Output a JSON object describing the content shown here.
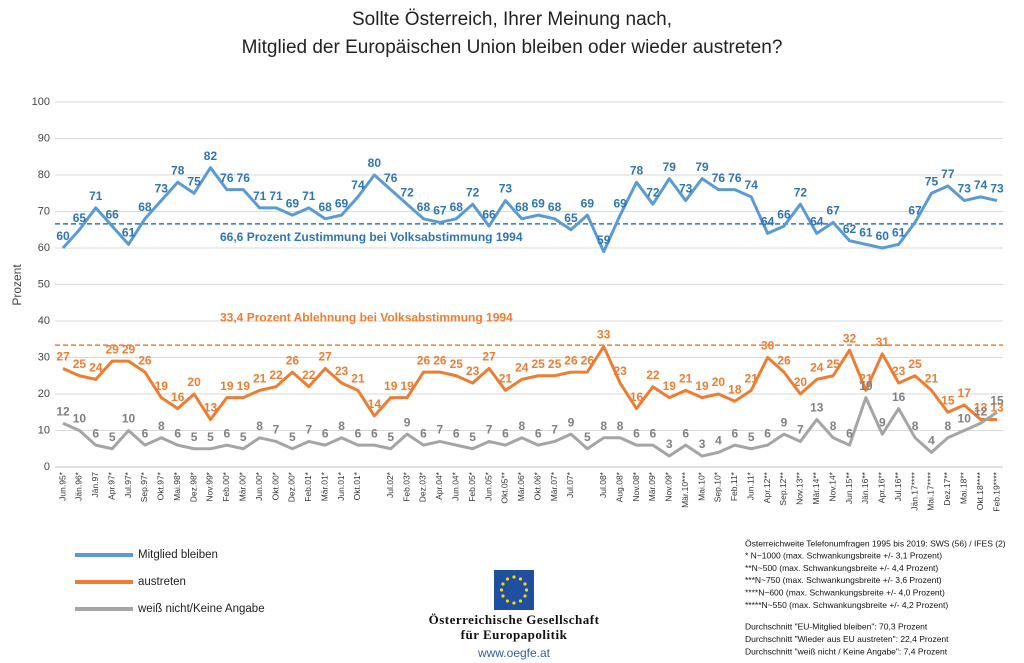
{
  "chart_data": {
    "type": "line",
    "title": [
      "Sollte Österreich, Ihrer Meinung nach,",
      "Mitglied der Europäischen Union bleiben oder wieder austreten?"
    ],
    "ylabel": "Prozent",
    "categories": [
      "Jun.95*",
      "Jän.96*",
      "Jän.97",
      "Apr.97*",
      "Jul.97*",
      "Sep.97*",
      "Okt.97*",
      "Mai.98*",
      "Dez.98*",
      "Nov.99*",
      "Feb.00*",
      "Mär.00*",
      "Jun.00*",
      "Okt.00*",
      "Dez.00*",
      "Feb.01*",
      "Mär.01*",
      "Jun.01*",
      "Okt.01*",
      null,
      "Jul.02*",
      "Feb.03*",
      "Dez.03*",
      "Apr.04*",
      "Jun.04*",
      "Feb.05*",
      "Jun.05*",
      "Okt.05**",
      "Mär.06*",
      "Okt.06*",
      "Mär.07*",
      "Jul.07*",
      null,
      "Jul.08*",
      "Aug.08*",
      "Nov.08*",
      "Mär.09*",
      "Nov.09*",
      "Mär.10***",
      "Mai.10*",
      "Sep.10*",
      "Feb.11*",
      "Jun.11*",
      "Apr.12**",
      "Sep.12**",
      "Nov.13**",
      "Mär.14**",
      "Nov.14*",
      "Jun.15**",
      "Jän.16**",
      "Apr.16**",
      "Jul.16**",
      "Jän.17****",
      "Mai.17****",
      "Dez.17**",
      "Mai.18**",
      "Okt.18****",
      "Feb.19****"
    ],
    "series": [
      {
        "name": "Mitglied bleiben",
        "color": "#5b9bd5",
        "label_color": "#2e75b6",
        "values": [
          60,
          65,
          71,
          66,
          61,
          68,
          73,
          78,
          75,
          82,
          76,
          76,
          71,
          71,
          69,
          71,
          68,
          69,
          74,
          80,
          76,
          72,
          68,
          67,
          68,
          72,
          66,
          73,
          68,
          69,
          68,
          65,
          69,
          59,
          69,
          78,
          72,
          79,
          73,
          79,
          76,
          76,
          74,
          64,
          66,
          72,
          64,
          67,
          62,
          61,
          60,
          61,
          67,
          75,
          77,
          73,
          74,
          73
        ]
      },
      {
        "name": "austreten",
        "color": "#ed7d31",
        "label_color": "#ed7d31",
        "values": [
          27,
          25,
          24,
          29,
          29,
          26,
          19,
          16,
          20,
          13,
          19,
          19,
          21,
          22,
          26,
          22,
          27,
          23,
          21,
          14,
          19,
          19,
          26,
          26,
          25,
          23,
          27,
          21,
          24,
          25,
          25,
          26,
          26,
          33,
          23,
          16,
          22,
          19,
          21,
          19,
          20,
          18,
          21,
          30,
          26,
          20,
          24,
          25,
          32,
          21,
          31,
          23,
          25,
          21,
          15,
          17,
          13,
          13
        ]
      },
      {
        "name": "weiß nicht/Keine Angabe",
        "color": "#a5a5a5",
        "label_color": "#808080",
        "values": [
          12,
          10,
          6,
          5,
          10,
          6,
          8,
          6,
          5,
          5,
          6,
          5,
          8,
          7,
          5,
          7,
          6,
          8,
          6,
          6,
          5,
          9,
          6,
          7,
          6,
          5,
          7,
          6,
          8,
          6,
          7,
          9,
          5,
          8,
          8,
          6,
          6,
          3,
          6,
          3,
          4,
          6,
          5,
          6,
          9,
          7,
          13,
          8,
          6,
          19,
          9,
          16,
          8,
          4,
          8,
          10,
          12,
          15
        ]
      }
    ],
    "ylim": [
      0,
      100
    ],
    "yticks": [
      0,
      10,
      20,
      30,
      40,
      50,
      60,
      70,
      80,
      90,
      100
    ],
    "grid": true,
    "reference_lines": [
      {
        "value": 66.6,
        "label": "66,6 Prozent Zustimmung bei Volksabstimmung 1994",
        "color": "#2e75b6"
      },
      {
        "value": 33.4,
        "label": "33,4 Prozent Ablehnung bei Volksabstimmung 1994",
        "color": "#ed7d31"
      }
    ],
    "legend": "bottom-left"
  },
  "footer": {
    "organization": [
      "Österreichische Gesellschaft",
      "für Europapolitik"
    ],
    "url": "www.oegfe.at"
  },
  "notes": {
    "sample": [
      "Österreichweite Telefonumfragen 1995 bis 2019: SWS (56) / IFES (2)",
      "* N~1000 (max. Schwankungsbreite +/- 3,1 Prozent)",
      "**N~500 (max. Schwankungsbreite +/-  4,4 Prozent)",
      "***N~750 (max. Schwankungsbreite +/- 3,6 Prozent)",
      "****N~600 (max. Schwankungsbreite +/- 4,0 Prozent)",
      "*****N~550 (max. Schwankungsbreite +/- 4,2 Prozent)"
    ],
    "averages": [
      "Durchschnitt \"EU-Mitglied bleiben\": 70,3 Prozent",
      "Durchschnitt \"Wieder aus EU austreten\":  22,4 Prozent",
      "Durchschnitt \"weiß nicht / Keine Angabe\": 7,4 Prozent"
    ]
  }
}
